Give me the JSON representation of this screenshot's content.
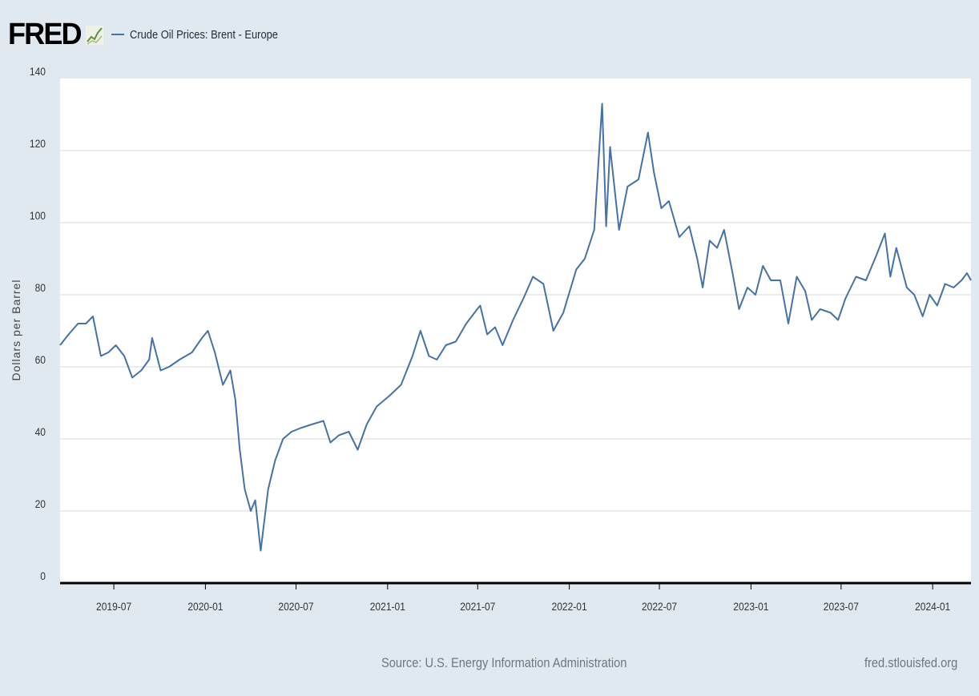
{
  "header": {
    "logo_text": "FRED",
    "logo_icon": "line-graph-icon",
    "legend_label": "Crude Oil Prices: Brent - Europe"
  },
  "footer": {
    "source": "Source: U.S. Energy Information Administration",
    "site": "fred.stlouisfed.org"
  },
  "colors": {
    "background": "#e1e9f0",
    "plot_background": "#ffffff",
    "series": "#4572a7",
    "grid": "#d8d8d8",
    "axis": "#000000",
    "text": "#333333"
  },
  "chart_data": {
    "type": "line",
    "title": "",
    "xlabel": "",
    "ylabel": "Dollars per Barrel",
    "ylim": [
      0,
      140
    ],
    "yticks": [
      0,
      20,
      40,
      60,
      80,
      100,
      120,
      140
    ],
    "xlim": [
      "2019-03-15",
      "2024-03-18"
    ],
    "xticks": [
      "2019-07",
      "2020-01",
      "2020-07",
      "2021-01",
      "2021-07",
      "2022-01",
      "2022-07",
      "2023-01",
      "2023-07",
      "2024-01"
    ],
    "grid": true,
    "legend": "top-left",
    "series": [
      {
        "name": "Crude Oil Prices: Brent - Europe",
        "points": [
          [
            "2019-03-15",
            66
          ],
          [
            "2019-04-01",
            69
          ],
          [
            "2019-04-20",
            72
          ],
          [
            "2019-05-06",
            72
          ],
          [
            "2019-05-20",
            74
          ],
          [
            "2019-06-05",
            63
          ],
          [
            "2019-06-20",
            64
          ],
          [
            "2019-07-05",
            66
          ],
          [
            "2019-07-22",
            63
          ],
          [
            "2019-08-07",
            57
          ],
          [
            "2019-08-25",
            59
          ],
          [
            "2019-09-10",
            62
          ],
          [
            "2019-09-16",
            68
          ],
          [
            "2019-10-03",
            59
          ],
          [
            "2019-10-20",
            60
          ],
          [
            "2019-11-10",
            62
          ],
          [
            "2019-12-05",
            64
          ],
          [
            "2019-12-25",
            68
          ],
          [
            "2020-01-06",
            70
          ],
          [
            "2020-01-20",
            64
          ],
          [
            "2020-02-05",
            55
          ],
          [
            "2020-02-20",
            59
          ],
          [
            "2020-03-01",
            51
          ],
          [
            "2020-03-10",
            37
          ],
          [
            "2020-03-20",
            26
          ],
          [
            "2020-04-01",
            20
          ],
          [
            "2020-04-10",
            23
          ],
          [
            "2020-04-21",
            9
          ],
          [
            "2020-05-06",
            26
          ],
          [
            "2020-05-20",
            34
          ],
          [
            "2020-06-05",
            40
          ],
          [
            "2020-06-22",
            42
          ],
          [
            "2020-07-10",
            43
          ],
          [
            "2020-08-01",
            44
          ],
          [
            "2020-08-25",
            45
          ],
          [
            "2020-09-08",
            39
          ],
          [
            "2020-09-25",
            41
          ],
          [
            "2020-10-15",
            42
          ],
          [
            "2020-11-02",
            37
          ],
          [
            "2020-11-20",
            44
          ],
          [
            "2020-12-10",
            49
          ],
          [
            "2021-01-05",
            52
          ],
          [
            "2021-01-28",
            55
          ],
          [
            "2021-02-20",
            63
          ],
          [
            "2021-03-08",
            70
          ],
          [
            "2021-03-25",
            63
          ],
          [
            "2021-04-10",
            62
          ],
          [
            "2021-04-28",
            66
          ],
          [
            "2021-05-18",
            67
          ],
          [
            "2021-06-08",
            72
          ],
          [
            "2021-06-30",
            76
          ],
          [
            "2021-07-06",
            77
          ],
          [
            "2021-07-20",
            69
          ],
          [
            "2021-08-05",
            71
          ],
          [
            "2021-08-20",
            66
          ],
          [
            "2021-09-10",
            73
          ],
          [
            "2021-10-01",
            79
          ],
          [
            "2021-10-20",
            85
          ],
          [
            "2021-11-10",
            83
          ],
          [
            "2021-11-30",
            70
          ],
          [
            "2021-12-20",
            75
          ],
          [
            "2022-01-15",
            87
          ],
          [
            "2022-02-01",
            90
          ],
          [
            "2022-02-20",
            98
          ],
          [
            "2022-03-08",
            133
          ],
          [
            "2022-03-16",
            99
          ],
          [
            "2022-03-24",
            121
          ],
          [
            "2022-04-11",
            98
          ],
          [
            "2022-04-28",
            110
          ],
          [
            "2022-05-20",
            112
          ],
          [
            "2022-06-08",
            125
          ],
          [
            "2022-06-20",
            114
          ],
          [
            "2022-07-05",
            104
          ],
          [
            "2022-07-20",
            106
          ],
          [
            "2022-08-10",
            96
          ],
          [
            "2022-08-30",
            99
          ],
          [
            "2022-09-15",
            90
          ],
          [
            "2022-09-26",
            82
          ],
          [
            "2022-10-10",
            95
          ],
          [
            "2022-10-25",
            93
          ],
          [
            "2022-11-08",
            98
          ],
          [
            "2022-11-25",
            86
          ],
          [
            "2022-12-08",
            76
          ],
          [
            "2022-12-25",
            82
          ],
          [
            "2023-01-10",
            80
          ],
          [
            "2023-01-25",
            88
          ],
          [
            "2023-02-10",
            84
          ],
          [
            "2023-03-01",
            84
          ],
          [
            "2023-03-17",
            72
          ],
          [
            "2023-04-03",
            85
          ],
          [
            "2023-04-20",
            81
          ],
          [
            "2023-05-03",
            73
          ],
          [
            "2023-05-20",
            76
          ],
          [
            "2023-06-10",
            75
          ],
          [
            "2023-06-25",
            73
          ],
          [
            "2023-07-10",
            79
          ],
          [
            "2023-07-31",
            85
          ],
          [
            "2023-08-20",
            84
          ],
          [
            "2023-09-10",
            91
          ],
          [
            "2023-09-27",
            97
          ],
          [
            "2023-10-08",
            85
          ],
          [
            "2023-10-20",
            93
          ],
          [
            "2023-11-10",
            82
          ],
          [
            "2023-11-25",
            80
          ],
          [
            "2023-12-12",
            74
          ],
          [
            "2023-12-26",
            80
          ],
          [
            "2024-01-10",
            77
          ],
          [
            "2024-01-26",
            83
          ],
          [
            "2024-02-12",
            82
          ],
          [
            "2024-02-28",
            84
          ],
          [
            "2024-03-10",
            86
          ],
          [
            "2024-03-18",
            84
          ]
        ]
      }
    ]
  }
}
